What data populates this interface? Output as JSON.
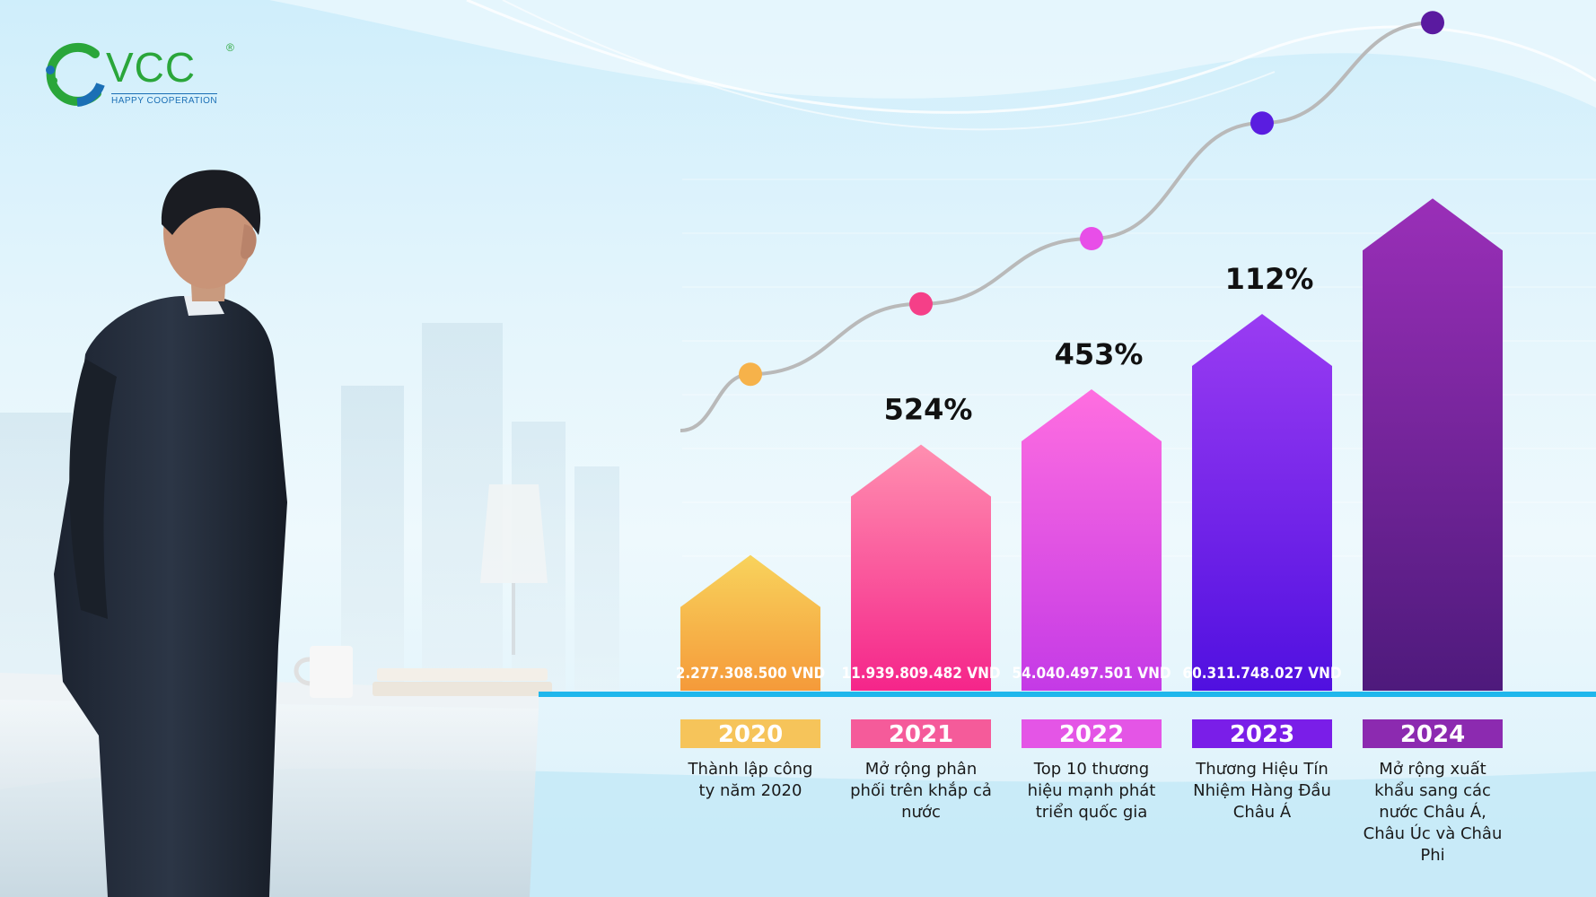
{
  "logo": {
    "text": "VCC",
    "registered": "®",
    "tagline": "HAPPY COOPERATION",
    "icon": "vcc-ring-logo"
  },
  "colors": {
    "axis_line": "#1fb7ec",
    "curve": "#b9b9b9"
  },
  "chart_data": {
    "type": "bar",
    "categories": [
      "2020",
      "2021",
      "2022",
      "2023",
      "2024"
    ],
    "values": [
      2277308500,
      11939809482,
      54040497501,
      60311748027,
      null
    ],
    "value_labels": [
      "2.277.308.500 VND",
      "11.939.809.482 VND",
      "54.040.497.501 VND",
      "60.311.748.027 VND",
      ""
    ],
    "growth_labels": [
      "",
      "524%",
      "453%",
      "112%",
      ""
    ],
    "descriptions": [
      "Thành lập công ty năm 2020",
      "Mở rộng phân phối trên khắp cả nước",
      "Top 10 thương hiệu mạnh phát triển quốc gia",
      "Thương Hiệu Tín Nhiệm Hàng Đầu Châu Á",
      "Mở rộng xuất khẩu sang các nước Châu Á, Châu Úc và Châu Phi"
    ],
    "bar_colors": [
      [
        "#f8d35c",
        "#f59a3a"
      ],
      [
        "#ff8fb0",
        "#f5258a"
      ],
      [
        "#ff6ee0",
        "#c43ae6"
      ],
      [
        "#9a3cf2",
        "#5010e0"
      ],
      [
        "#9a2fb8",
        "#4e1a7c"
      ]
    ],
    "year_colors": [
      "#f6c45a",
      "#f55b9a",
      "#e455e6",
      "#7a1ee8",
      "#8c2ab0"
    ],
    "dot_colors": [
      "#f6b24a",
      "#f53f88",
      "#e84ee8",
      "#5a1de0",
      "#5a1aa0"
    ],
    "relative_heights": [
      0.27,
      0.49,
      0.6,
      0.75,
      0.98
    ],
    "curve_levels": [
      0.63,
      0.77,
      0.9,
      1.13,
      1.33
    ]
  }
}
